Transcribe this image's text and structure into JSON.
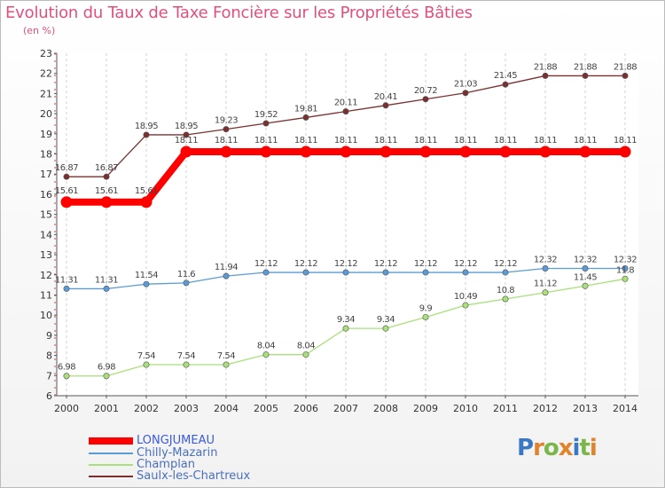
{
  "title": "Evolution du Taux de Taxe Foncière sur les Propriétés Bâties",
  "unit": "(en %)",
  "logo": {
    "text": "Proxiti",
    "colors": [
      "#3a78c4",
      "#e2832b",
      "#7ab648",
      "#e2832b",
      "#3a78c4",
      "#7ab648",
      "#e2832b"
    ]
  },
  "chart_data": {
    "type": "line",
    "title": "Evolution du Taux de Taxe Foncière sur les Propriétés Bâties",
    "ylabel": "(en %)",
    "xlabel": "",
    "ylim": [
      6,
      23
    ],
    "yticks": [
      6,
      7,
      8,
      9,
      10,
      11,
      12,
      13,
      14,
      15,
      16,
      17,
      18,
      19,
      20,
      21,
      22,
      23
    ],
    "categories": [
      "2000",
      "2001",
      "2002",
      "2003",
      "2004",
      "2005",
      "2006",
      "2007",
      "2008",
      "2009",
      "2010",
      "2011",
      "2012",
      "2013",
      "2014"
    ],
    "grid": "vertical dashed",
    "legend_position": "bottom-left",
    "series": [
      {
        "name": "LONGJUMEAU",
        "color": "#ff0000",
        "emphasis": true,
        "values": [
          15.61,
          15.61,
          15.61,
          18.11,
          18.11,
          18.11,
          18.11,
          18.11,
          18.11,
          18.11,
          18.11,
          18.11,
          18.11,
          18.11,
          18.11
        ],
        "labels": [
          "15.61",
          "15.61",
          "15.61",
          "18.11",
          "18.11",
          "18.11",
          "18.11",
          "18.11",
          "18.11",
          "18.11",
          "18.11",
          "18.11",
          "18.11",
          "18.11",
          "18.11"
        ]
      },
      {
        "name": "Chilly-Mazarin",
        "color": "#5b9bd5",
        "emphasis": false,
        "values": [
          11.31,
          11.31,
          11.54,
          11.6,
          11.94,
          12.12,
          12.12,
          12.12,
          12.12,
          12.12,
          12.12,
          12.12,
          12.32,
          12.32,
          12.32
        ],
        "labels": [
          "11.31",
          "11.31",
          "11.54",
          "11.6",
          "11.94",
          "12.12",
          "12.12",
          "12.12",
          "12.12",
          "12.12",
          "12.12",
          "12.12",
          "12.32",
          "12.32",
          "12.32"
        ]
      },
      {
        "name": "Champlan",
        "color": "#a9e07a",
        "emphasis": false,
        "values": [
          6.98,
          6.98,
          7.54,
          7.54,
          7.54,
          8.04,
          8.04,
          9.34,
          9.34,
          9.9,
          10.49,
          10.8,
          11.12,
          11.45,
          11.8
        ],
        "labels": [
          "6.98",
          "6.98",
          "7.54",
          "7.54",
          "7.54",
          "8.04",
          "8.04",
          "9.34",
          "9.34",
          "9.9",
          "10.49",
          "10.8",
          "11.12",
          "11.45",
          "11.8"
        ]
      },
      {
        "name": "Saulx-les-Chartreux",
        "color": "#7b3030",
        "emphasis": false,
        "values": [
          16.87,
          16.87,
          18.95,
          18.95,
          19.23,
          19.52,
          19.81,
          20.11,
          20.41,
          20.72,
          21.03,
          21.45,
          21.88,
          21.88,
          21.88
        ],
        "labels": [
          "16.87",
          "16.87",
          "18.95",
          "18.95",
          "19.23",
          "19.52",
          "19.81",
          "20.11",
          "20.41",
          "20.72",
          "21.03",
          "21.45",
          "21.88",
          "21.88",
          "21.88"
        ]
      }
    ]
  }
}
